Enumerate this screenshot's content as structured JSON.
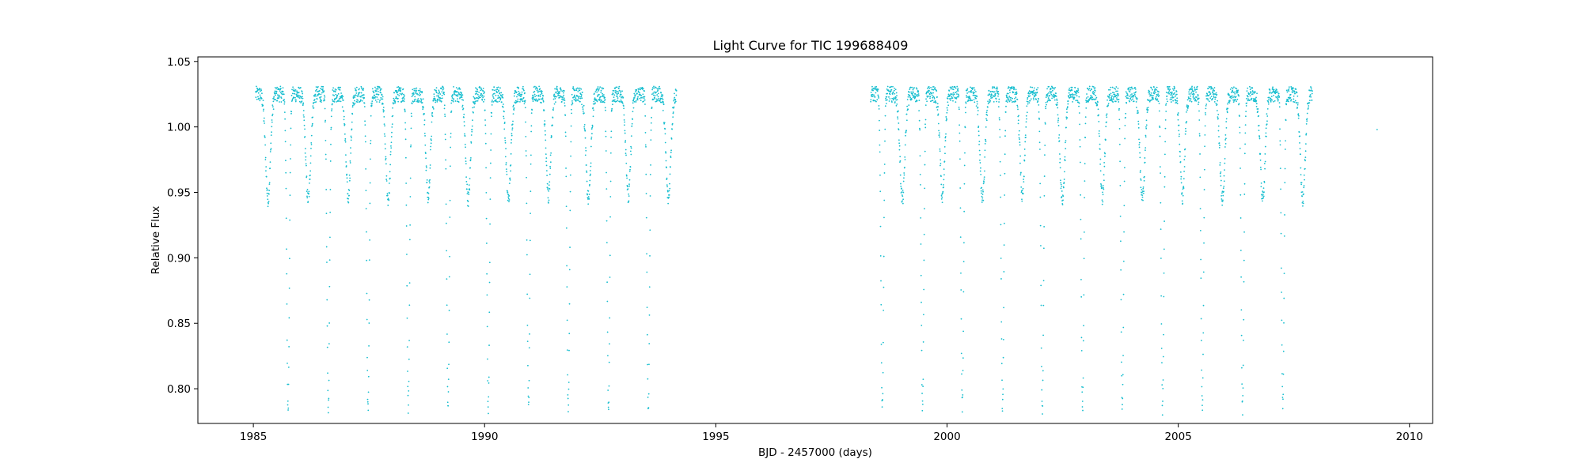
{
  "chart_data": {
    "type": "scatter",
    "title": "Light Curve for TIC 199688409",
    "xlabel": "BJD - 2457000 (days)",
    "ylabel": "Relative Flux",
    "xlim": [
      1983.8,
      2010.5
    ],
    "ylim": [
      0.7735,
      1.0535
    ],
    "xticks": [
      1985,
      1990,
      1995,
      2000,
      2005,
      2010
    ],
    "xtick_labels": [
      "1985",
      "1990",
      "1995",
      "2000",
      "2005",
      "2010"
    ],
    "yticks": [
      0.8,
      0.85,
      0.9,
      0.95,
      1.0,
      1.05
    ],
    "ytick_labels": [
      "0.80",
      "0.85",
      "0.90",
      "0.95",
      "1.00",
      "1.05"
    ],
    "grid": false,
    "legend": "none",
    "marker_color": "#17becf",
    "series": [
      {
        "segments": [
          {
            "start": 1985.05,
            "end": 1994.15
          },
          {
            "start": 1998.35,
            "end": 2007.9
          },
          {
            "start": 2009.3,
            "end": 2009.3
          }
        ],
        "period": 0.866,
        "primary_minima": [
          1985.75,
          1986.62,
          1987.48,
          1988.35,
          1989.21,
          1990.08,
          1990.95,
          1991.81,
          1992.68,
          1993.54,
          1998.6,
          1999.47,
          2000.33,
          2001.2,
          2002.06,
          2002.93,
          2003.79,
          2004.66,
          2005.52,
          2006.39,
          2007.26
        ],
        "primary_depth": 0.785,
        "secondary_depth": 0.945,
        "max_flux": 1.025
      }
    ]
  }
}
